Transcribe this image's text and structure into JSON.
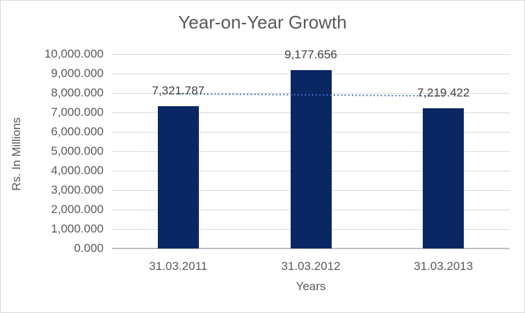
{
  "chart_data": {
    "type": "bar",
    "title": "Year-on-Year Growth",
    "xlabel": "Years",
    "ylabel": "Rs. In Millions",
    "categories": [
      "31.03.2011",
      "31.03.2012",
      "31.03.2013"
    ],
    "values": [
      7321.787,
      9177.656,
      7219.422
    ],
    "value_labels": [
      "7,321.787",
      "9,177.656",
      "7,219.422"
    ],
    "ylim": [
      0,
      10000
    ],
    "ytick_step": 1000,
    "ytick_labels": [
      "0.000",
      "1,000.000",
      "2,000.000",
      "3,000.000",
      "4,000.000",
      "5,000.000",
      "6,000.000",
      "7,000.000",
      "8,000.000",
      "9,000.000",
      "10,000.000"
    ],
    "grid": true,
    "legend": "none",
    "trendline": {
      "type": "linear",
      "style": "dotted",
      "start_value": 7960,
      "end_value": 7845
    }
  },
  "colors": {
    "background": "#ffffff",
    "chart_border": "#d9d9d9",
    "gridline": "#d9d9d9",
    "axis_line": "#bfbfbf",
    "title_text": "#595959",
    "axis_text": "#595959",
    "data_label_text": "#404040",
    "bar_fill": "#0a2663",
    "trendline": "#4472c4"
  }
}
